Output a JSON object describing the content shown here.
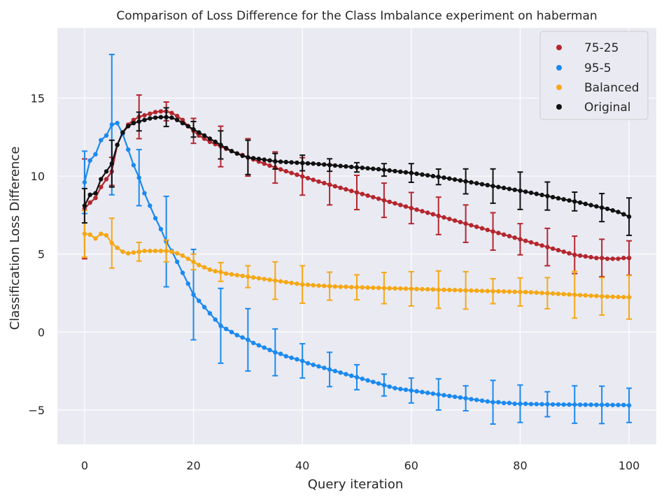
{
  "chart_data": {
    "type": "line",
    "title": "Comparison of Loss Difference for the Class Imbalance experiment on haberman",
    "xlabel": "Query iteration",
    "ylabel": "Classification Loss Difference",
    "xlim": [
      -5,
      105
    ],
    "ylim": [
      -7.2,
      19.5
    ],
    "xticks": [
      0,
      20,
      40,
      60,
      80,
      100
    ],
    "yticks": [
      -5,
      0,
      5,
      10,
      15
    ],
    "xtick_labels": [
      "0",
      "20",
      "40",
      "60",
      "80",
      "100"
    ],
    "ytick_labels": [
      "−5",
      "0",
      "5",
      "10",
      "15"
    ],
    "grid": true,
    "legend_position": "top-right",
    "x": [
      0,
      1,
      2,
      3,
      4,
      5,
      6,
      7,
      8,
      9,
      10,
      11,
      12,
      13,
      14,
      15,
      16,
      17,
      18,
      19,
      20,
      21,
      22,
      23,
      24,
      25,
      26,
      27,
      28,
      29,
      30,
      31,
      32,
      33,
      34,
      35,
      36,
      37,
      38,
      39,
      40,
      41,
      42,
      43,
      44,
      45,
      46,
      47,
      48,
      49,
      50,
      51,
      52,
      53,
      54,
      55,
      56,
      57,
      58,
      59,
      60,
      61,
      62,
      63,
      64,
      65,
      66,
      67,
      68,
      69,
      70,
      71,
      72,
      73,
      74,
      75,
      76,
      77,
      78,
      79,
      80,
      81,
      82,
      83,
      84,
      85,
      86,
      87,
      88,
      89,
      90,
      91,
      92,
      93,
      94,
      95,
      96,
      97,
      98,
      99,
      100
    ],
    "series": [
      {
        "name": "75-25",
        "color": "#b5262e",
        "values": [
          7.9,
          8.3,
          8.6,
          9.3,
          9.8,
          10.3,
          12.0,
          12.8,
          13.3,
          13.6,
          13.8,
          13.9,
          14.0,
          14.1,
          14.15,
          14.15,
          14.05,
          13.85,
          13.6,
          13.2,
          12.9,
          12.6,
          12.4,
          12.2,
          12.05,
          11.9,
          11.75,
          11.6,
          11.45,
          11.35,
          11.2,
          11.07,
          10.93,
          10.8,
          10.67,
          10.55,
          10.43,
          10.31,
          10.2,
          10.09,
          9.98,
          9.87,
          9.76,
          9.65,
          9.55,
          9.45,
          9.35,
          9.25,
          9.15,
          9.05,
          8.95,
          8.85,
          8.75,
          8.65,
          8.55,
          8.45,
          8.35,
          8.25,
          8.15,
          8.05,
          7.95,
          7.85,
          7.75,
          7.65,
          7.55,
          7.45,
          7.35,
          7.25,
          7.15,
          7.05,
          6.95,
          6.85,
          6.75,
          6.65,
          6.55,
          6.45,
          6.35,
          6.25,
          6.15,
          6.05,
          5.95,
          5.85,
          5.75,
          5.65,
          5.55,
          5.45,
          5.35,
          5.25,
          5.15,
          5.05,
          4.95,
          4.9,
          4.85,
          4.8,
          4.75,
          4.75,
          4.7,
          4.7,
          4.7,
          4.75,
          4.75
        ],
        "err_x": [
          0,
          5,
          10,
          15,
          20,
          25,
          30,
          35,
          40,
          45,
          50,
          55,
          60,
          65,
          70,
          75,
          80,
          85,
          90,
          95,
          100
        ],
        "err": [
          3.2,
          0.9,
          1.4,
          0.6,
          0.8,
          1.3,
          1.2,
          1.0,
          1.2,
          1.3,
          1.1,
          1.1,
          1.0,
          1.2,
          1.2,
          1.2,
          1.0,
          1.2,
          1.2,
          1.2,
          1.1
        ]
      },
      {
        "name": "95-5",
        "color": "#1a8af0",
        "values": [
          9.6,
          11.0,
          11.4,
          12.3,
          12.6,
          13.3,
          13.4,
          12.7,
          11.7,
          10.7,
          9.9,
          8.9,
          8.1,
          7.3,
          6.6,
          5.8,
          5.2,
          4.5,
          3.8,
          3.1,
          2.4,
          2.0,
          1.6,
          1.2,
          0.8,
          0.4,
          0.2,
          0.0,
          -0.2,
          -0.35,
          -0.5,
          -0.7,
          -0.85,
          -1.0,
          -1.15,
          -1.3,
          -1.4,
          -1.55,
          -1.65,
          -1.75,
          -1.85,
          -2.0,
          -2.1,
          -2.2,
          -2.3,
          -2.4,
          -2.5,
          -2.6,
          -2.7,
          -2.8,
          -2.9,
          -3.0,
          -3.1,
          -3.2,
          -3.3,
          -3.4,
          -3.5,
          -3.6,
          -3.65,
          -3.7,
          -3.75,
          -3.8,
          -3.85,
          -3.9,
          -3.95,
          -4.0,
          -4.05,
          -4.1,
          -4.15,
          -4.2,
          -4.25,
          -4.3,
          -4.35,
          -4.4,
          -4.45,
          -4.5,
          -4.5,
          -4.55,
          -4.55,
          -4.6,
          -4.6,
          -4.6,
          -4.62,
          -4.62,
          -4.63,
          -4.63,
          -4.64,
          -4.64,
          -4.65,
          -4.65,
          -4.65,
          -4.66,
          -4.66,
          -4.66,
          -4.67,
          -4.67,
          -4.67,
          -4.68,
          -4.68,
          -4.68,
          -4.7
        ],
        "err_x": [
          0,
          5,
          10,
          15,
          20,
          25,
          30,
          35,
          40,
          45,
          50,
          55,
          60,
          65,
          70,
          75,
          80,
          85,
          90,
          95,
          100
        ],
        "err": [
          2.0,
          4.5,
          1.8,
          2.9,
          2.9,
          2.4,
          2.0,
          1.5,
          1.1,
          1.1,
          0.8,
          0.7,
          0.8,
          1.0,
          0.8,
          1.4,
          1.2,
          0.8,
          1.2,
          1.2,
          1.1
        ]
      },
      {
        "name": "Balanced",
        "color": "#f5a816",
        "values": [
          6.3,
          6.25,
          6.0,
          6.3,
          6.2,
          5.7,
          5.4,
          5.15,
          5.05,
          5.1,
          5.15,
          5.2,
          5.2,
          5.2,
          5.2,
          5.2,
          5.15,
          5.05,
          4.9,
          4.7,
          4.5,
          4.3,
          4.15,
          4.0,
          3.9,
          3.85,
          3.75,
          3.7,
          3.65,
          3.6,
          3.55,
          3.5,
          3.45,
          3.4,
          3.35,
          3.3,
          3.25,
          3.2,
          3.15,
          3.1,
          3.05,
          3.03,
          3.0,
          2.98,
          2.96,
          2.94,
          2.92,
          2.9,
          2.9,
          2.88,
          2.87,
          2.86,
          2.85,
          2.84,
          2.83,
          2.82,
          2.81,
          2.8,
          2.79,
          2.78,
          2.77,
          2.76,
          2.75,
          2.74,
          2.73,
          2.72,
          2.71,
          2.7,
          2.69,
          2.68,
          2.67,
          2.66,
          2.65,
          2.64,
          2.63,
          2.62,
          2.61,
          2.6,
          2.59,
          2.58,
          2.57,
          2.56,
          2.55,
          2.53,
          2.51,
          2.49,
          2.47,
          2.45,
          2.43,
          2.41,
          2.39,
          2.37,
          2.35,
          2.33,
          2.31,
          2.29,
          2.27,
          2.26,
          2.25,
          2.24,
          2.23
        ],
        "err_x": [
          0,
          5,
          10,
          15,
          20,
          25,
          30,
          35,
          40,
          45,
          50,
          55,
          60,
          65,
          70,
          75,
          80,
          85,
          90,
          95,
          100
        ],
        "err": [
          1.5,
          1.6,
          0.6,
          0.7,
          0.5,
          0.6,
          0.7,
          1.2,
          1.2,
          0.9,
          0.8,
          1.0,
          1.1,
          1.2,
          1.2,
          0.8,
          0.9,
          1.0,
          1.5,
          1.2,
          1.4
        ]
      },
      {
        "name": "Original",
        "color": "#111111",
        "values": [
          8.1,
          8.8,
          8.9,
          9.8,
          10.3,
          10.8,
          12.0,
          12.8,
          13.2,
          13.4,
          13.5,
          13.6,
          13.7,
          13.75,
          13.78,
          13.78,
          13.75,
          13.6,
          13.4,
          13.2,
          13.0,
          12.8,
          12.6,
          12.4,
          12.2,
          12.0,
          11.8,
          11.6,
          11.45,
          11.3,
          11.2,
          11.15,
          11.1,
          11.05,
          11.0,
          10.95,
          10.92,
          10.9,
          10.88,
          10.86,
          10.84,
          10.82,
          10.8,
          10.77,
          10.74,
          10.71,
          10.68,
          10.65,
          10.62,
          10.59,
          10.56,
          10.53,
          10.5,
          10.47,
          10.44,
          10.4,
          10.36,
          10.32,
          10.28,
          10.24,
          10.2,
          10.15,
          10.1,
          10.05,
          10.0,
          9.95,
          9.9,
          9.84,
          9.78,
          9.72,
          9.66,
          9.6,
          9.54,
          9.48,
          9.42,
          9.36,
          9.3,
          9.24,
          9.18,
          9.12,
          9.06,
          9.0,
          8.93,
          8.86,
          8.79,
          8.72,
          8.65,
          8.58,
          8.51,
          8.44,
          8.37,
          8.3,
          8.22,
          8.14,
          8.06,
          7.98,
          7.9,
          7.8,
          7.7,
          7.55,
          7.4
        ],
        "err_x": [
          0,
          5,
          10,
          15,
          20,
          25,
          30,
          35,
          40,
          45,
          50,
          55,
          60,
          65,
          70,
          75,
          80,
          85,
          90,
          95,
          100
        ],
        "err": [
          1.1,
          1.5,
          0.6,
          0.6,
          0.5,
          0.9,
          1.1,
          0.5,
          0.5,
          0.4,
          0.3,
          0.4,
          0.6,
          0.5,
          0.8,
          1.1,
          1.2,
          0.9,
          0.6,
          0.9,
          1.2
        ]
      }
    ]
  }
}
